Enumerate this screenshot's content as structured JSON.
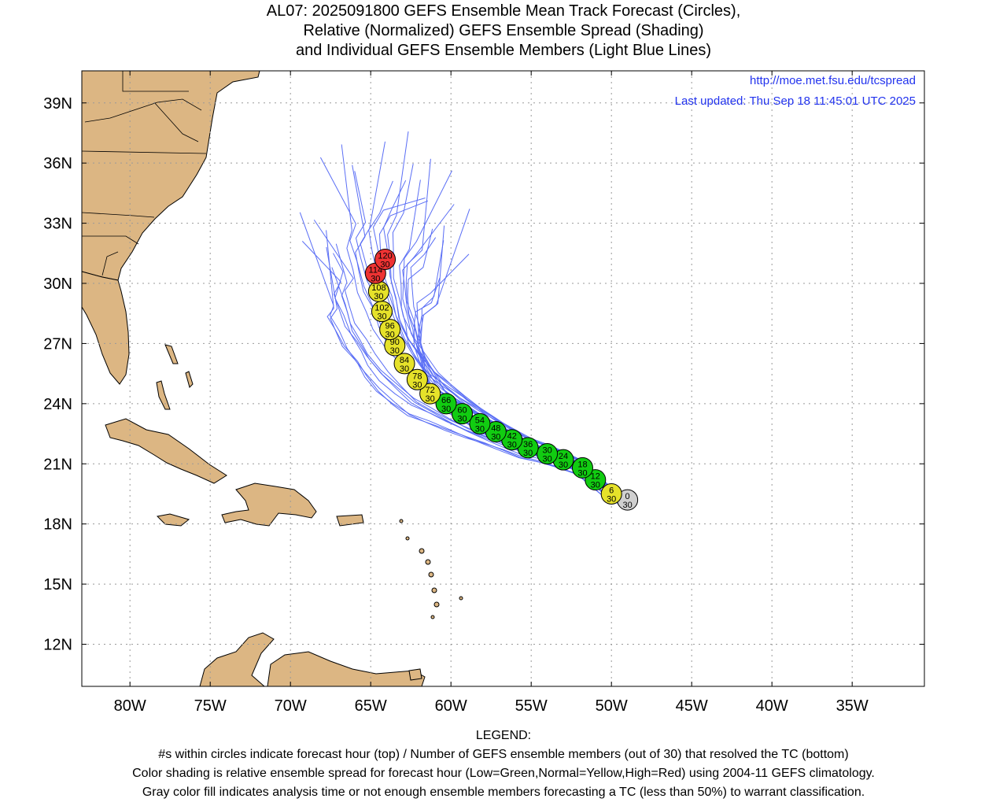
{
  "title": {
    "line1": "AL07: 2025091800 GEFS Ensemble Mean Track Forecast (Circles),",
    "line2": "Relative (Normalized) GEFS Ensemble Spread (Shading)",
    "line3": "and Individual GEFS Ensemble Members (Light Blue Lines)"
  },
  "credits": {
    "url": "http://moe.met.fsu.edu/tcspread",
    "updated": "Last updated: Thu Sep 18 11:45:01 UTC 2025"
  },
  "axes": {
    "lon_labels": [
      "80W",
      "75W",
      "70W",
      "65W",
      "60W",
      "55W",
      "50W",
      "45W",
      "40W",
      "35W"
    ],
    "lon_values": [
      -80,
      -75,
      -70,
      -65,
      -60,
      -55,
      -50,
      -45,
      -40,
      -35
    ],
    "lat_labels": [
      "39N",
      "36N",
      "33N",
      "30N",
      "27N",
      "24N",
      "21N",
      "18N",
      "15N",
      "12N"
    ],
    "lat_values": [
      39,
      36,
      33,
      30,
      27,
      24,
      21,
      18,
      15,
      12
    ],
    "lon_range": [
      -83,
      -30.5
    ],
    "lat_range": [
      9.9,
      40.6
    ],
    "grid": true
  },
  "colors": {
    "land": "#dcb683",
    "ocean": "#ffffff",
    "member_track": "#5a6ef5",
    "low_spread": "#11cc11",
    "normal_spread": "#e6e22a",
    "high_spread": "#ee3333",
    "analysis": "#d0d0d0",
    "credit_text": "#2233ee"
  },
  "chart_data": {
    "type": "scatter",
    "forecast_points": [
      {
        "hour": "0",
        "members": "30",
        "lon": -49.0,
        "lat": 19.2,
        "category": "analysis"
      },
      {
        "hour": "6",
        "members": "30",
        "lon": -50.0,
        "lat": 19.5,
        "category": "normal"
      },
      {
        "hour": "12",
        "members": "30",
        "lon": -51.0,
        "lat": 20.2,
        "category": "low"
      },
      {
        "hour": "18",
        "members": "30",
        "lon": -51.8,
        "lat": 20.8,
        "category": "low"
      },
      {
        "hour": "24",
        "members": "30",
        "lon": -53.0,
        "lat": 21.2,
        "category": "low"
      },
      {
        "hour": "30",
        "members": "30",
        "lon": -54.0,
        "lat": 21.5,
        "category": "low"
      },
      {
        "hour": "36",
        "members": "30",
        "lon": -55.2,
        "lat": 21.8,
        "category": "low"
      },
      {
        "hour": "42",
        "members": "30",
        "lon": -56.2,
        "lat": 22.2,
        "category": "low"
      },
      {
        "hour": "48",
        "members": "30",
        "lon": -57.2,
        "lat": 22.6,
        "category": "low"
      },
      {
        "hour": "54",
        "members": "30",
        "lon": -58.2,
        "lat": 23.0,
        "category": "low"
      },
      {
        "hour": "60",
        "members": "30",
        "lon": -59.3,
        "lat": 23.5,
        "category": "low"
      },
      {
        "hour": "66",
        "members": "30",
        "lon": -60.3,
        "lat": 24.0,
        "category": "low"
      },
      {
        "hour": "72",
        "members": "30",
        "lon": -61.3,
        "lat": 24.5,
        "category": "normal"
      },
      {
        "hour": "78",
        "members": "30",
        "lon": -62.1,
        "lat": 25.2,
        "category": "normal"
      },
      {
        "hour": "84",
        "members": "30",
        "lon": -62.9,
        "lat": 26.0,
        "category": "normal"
      },
      {
        "hour": "90",
        "members": "30",
        "lon": -63.5,
        "lat": 26.9,
        "category": "normal"
      },
      {
        "hour": "96",
        "members": "30",
        "lon": -63.8,
        "lat": 27.7,
        "category": "normal"
      },
      {
        "hour": "102",
        "members": "30",
        "lon": -64.3,
        "lat": 28.6,
        "category": "normal"
      },
      {
        "hour": "108",
        "members": "30",
        "lon": -64.5,
        "lat": 29.6,
        "category": "normal"
      },
      {
        "hour": "114",
        "members": "30",
        "lon": -64.7,
        "lat": 30.5,
        "category": "high"
      },
      {
        "hour": "120",
        "members": "30",
        "lon": -64.1,
        "lat": 31.2,
        "category": "high"
      }
    ]
  },
  "legend": {
    "heading": "LEGEND:",
    "line1": "#s within circles indicate forecast hour (top) / Number of GEFS ensemble members (out of 30) that resolved the TC (bottom)",
    "line2": "Color shading is relative ensemble spread for forecast hour (Low=Green,Normal=Yellow,High=Red) using 2004-11 GEFS climatology.",
    "line3": "Gray color fill indicates analysis time or not enough ensemble members forecasting a TC (less than 50%) to warrant classification."
  }
}
